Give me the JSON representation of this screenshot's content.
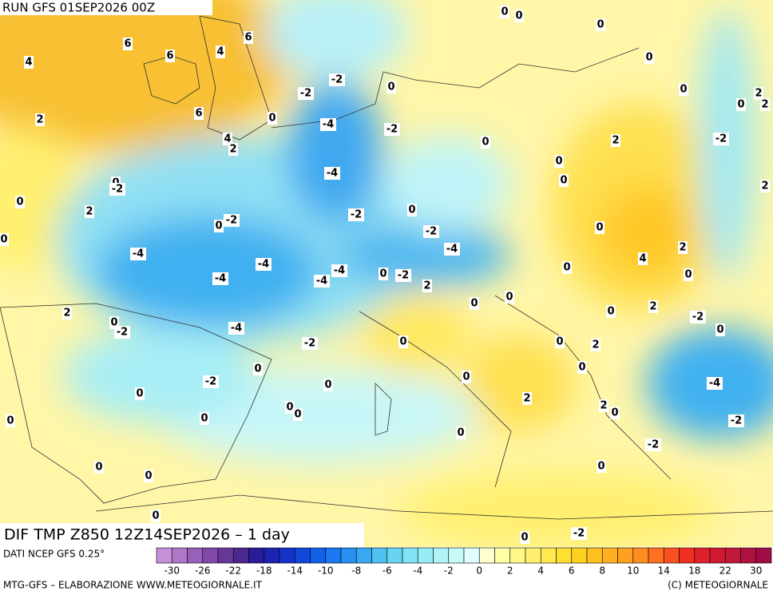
{
  "map": {
    "header": "RUN GFS 01SEP2026 00Z",
    "field_title": "DIF TMP Z850 12Z14SEP2026 – 1 day",
    "contour_labels": [
      0,
      0,
      0,
      6,
      6,
      6,
      4,
      4,
      0,
      -2,
      -2,
      0,
      0,
      2,
      0,
      2,
      2,
      6,
      0,
      -4,
      -2,
      4,
      2,
      0,
      2,
      -2,
      0,
      -4,
      0,
      -2,
      0,
      2,
      0,
      2,
      0,
      -2,
      -2,
      0,
      0,
      0,
      -2,
      -4,
      -4,
      2,
      4,
      -4,
      -4,
      -4,
      -4,
      0,
      -2,
      0,
      0,
      2,
      0,
      0,
      2,
      0,
      2,
      0,
      -2,
      -2,
      -4,
      0,
      0,
      -2,
      0,
      2,
      0,
      0,
      0,
      -2,
      0,
      -4,
      0,
      2,
      2,
      0,
      0,
      0,
      0,
      -2,
      0,
      0,
      -2,
      0,
      0,
      0,
      0,
      0,
      -2
    ]
  },
  "colorbar": {
    "source": "DATI NCEP GFS 0.25°",
    "colors": [
      "#c890d8",
      "#b078c8",
      "#9860b8",
      "#8048a8",
      "#683898",
      "#4a2890",
      "#2a1c98",
      "#1a24b0",
      "#1434c8",
      "#1048dc",
      "#1060ea",
      "#1a78f0",
      "#2890f0",
      "#38a8f0",
      "#50c0f0",
      "#68d4f2",
      "#80e2f4",
      "#98ecf6",
      "#b0f4f8",
      "#c8fafa",
      "#e0fefe",
      "#ffffd0",
      "#ffffa8",
      "#fff888",
      "#fff070",
      "#ffe850",
      "#ffe030",
      "#ffd020",
      "#ffc020",
      "#ffb020",
      "#ffa020",
      "#ff8c20",
      "#ff7020",
      "#f85020",
      "#f03020",
      "#e02028",
      "#d01830",
      "#c01838",
      "#b01040",
      "#a00c48"
    ],
    "labels": [
      -30,
      -26,
      -22,
      -18,
      -14,
      -10,
      -8,
      -6,
      -4,
      -2,
      0,
      2,
      4,
      6,
      8,
      10,
      14,
      18,
      22,
      30
    ]
  },
  "footer": {
    "left": "MTG-GFS – ELABORAZIONE WWW.METEOGIORNALE.IT",
    "right": "(C) METEOGIORNALE"
  }
}
